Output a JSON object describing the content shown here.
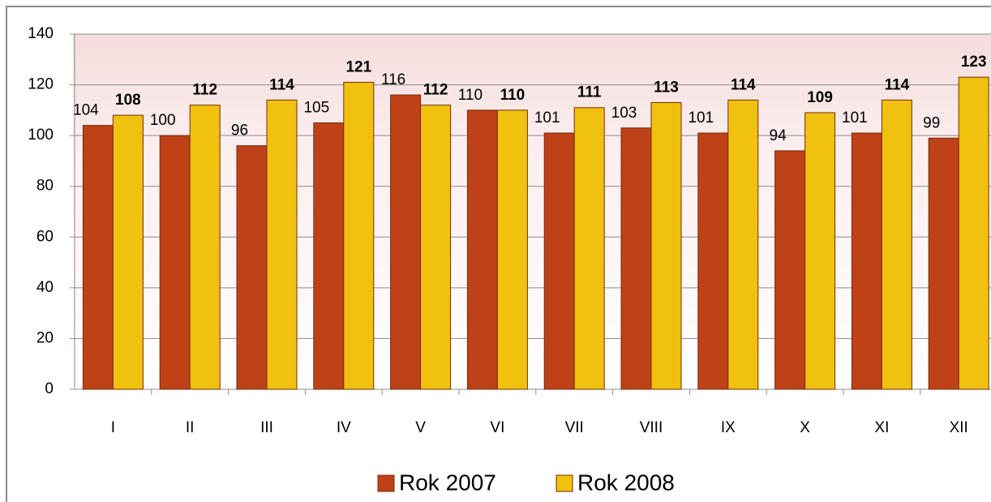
{
  "chart_data": {
    "type": "bar",
    "categories": [
      "I",
      "II",
      "III",
      "IV",
      "V",
      "VI",
      "VII",
      "VIII",
      "IX",
      "X",
      "XI",
      "XII"
    ],
    "series": [
      {
        "name": "Rok 2007",
        "color": "#be4117",
        "values": [
          104,
          100,
          96,
          105,
          116,
          110,
          101,
          103,
          101,
          94,
          101,
          99
        ]
      },
      {
        "name": "Rok 2008",
        "color": "#f0c10e",
        "values": [
          108,
          112,
          114,
          121,
          112,
          110,
          111,
          113,
          114,
          109,
          114,
          123
        ]
      }
    ],
    "ylim": [
      0,
      140
    ],
    "yticks": [
      0,
      20,
      40,
      60,
      80,
      100,
      120,
      140
    ],
    "grid": true,
    "legend": "bottom"
  }
}
